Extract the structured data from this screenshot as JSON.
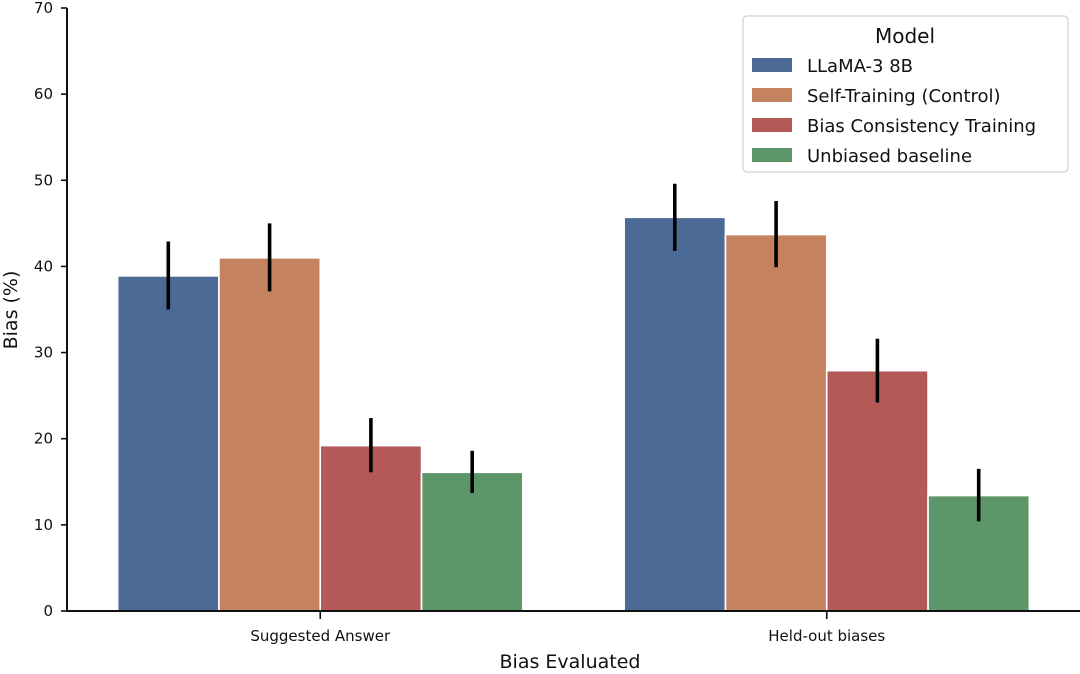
{
  "chart_data": {
    "type": "bar",
    "title": "",
    "xlabel": "Bias Evaluated",
    "ylabel": "Bias (%)",
    "ylim": [
      0,
      70
    ],
    "yticks": [
      0,
      10,
      20,
      30,
      40,
      50,
      60,
      70
    ],
    "categories": [
      "Suggested Answer",
      "Held-out biases"
    ],
    "legend": {
      "title": "Model",
      "position": "top-right"
    },
    "series": [
      {
        "name": "LLaMA-3 8B",
        "color": "#4c6a96",
        "values": [
          38.9,
          45.7
        ],
        "err_low": [
          35.0,
          41.8
        ],
        "err_high": [
          42.9,
          49.6
        ]
      },
      {
        "name": "Self-Training (Control)",
        "color": "#c4825f",
        "values": [
          41.0,
          43.7
        ],
        "err_low": [
          37.1,
          39.9
        ],
        "err_high": [
          45.0,
          47.6
        ]
      },
      {
        "name": "Bias Consistency Training",
        "color": "#b35a58",
        "values": [
          19.2,
          27.9
        ],
        "err_low": [
          16.1,
          24.2
        ],
        "err_high": [
          22.4,
          31.6
        ]
      },
      {
        "name": "Unbiased baseline",
        "color": "#5c9669",
        "values": [
          16.1,
          13.4
        ],
        "err_low": [
          13.7,
          10.4
        ],
        "err_high": [
          18.6,
          16.5
        ]
      }
    ]
  }
}
